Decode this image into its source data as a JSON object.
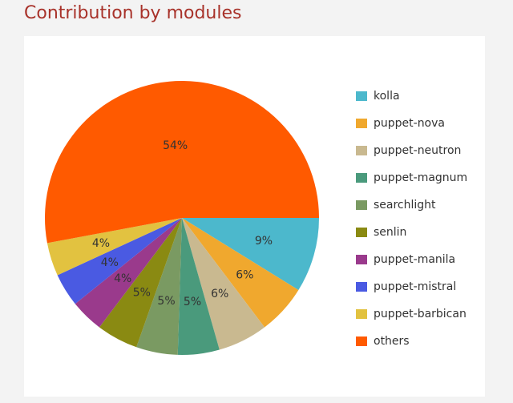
{
  "chart_data": {
    "type": "pie",
    "title": "Contribution by modules",
    "categories": [
      "kolla",
      "puppet-nova",
      "puppet-neutron",
      "puppet-magnum",
      "searchlight",
      "senlin",
      "puppet-manila",
      "puppet-mistral",
      "puppet-barbican",
      "others"
    ],
    "values": [
      9,
      6,
      6,
      5,
      5,
      5,
      4,
      4,
      4,
      54
    ],
    "value_labels": [
      "9%",
      "6%",
      "6%",
      "5%",
      "5%",
      "5%",
      "4%",
      "4%",
      "4%",
      "54%"
    ],
    "colors": [
      "#4cb8cc",
      "#f0a82e",
      "#c9b990",
      "#4a9a7c",
      "#7a9a62",
      "#8a8a12",
      "#9a3a8c",
      "#4a5ae2",
      "#e2c240",
      "#ff5a00"
    ],
    "legend": "right"
  }
}
